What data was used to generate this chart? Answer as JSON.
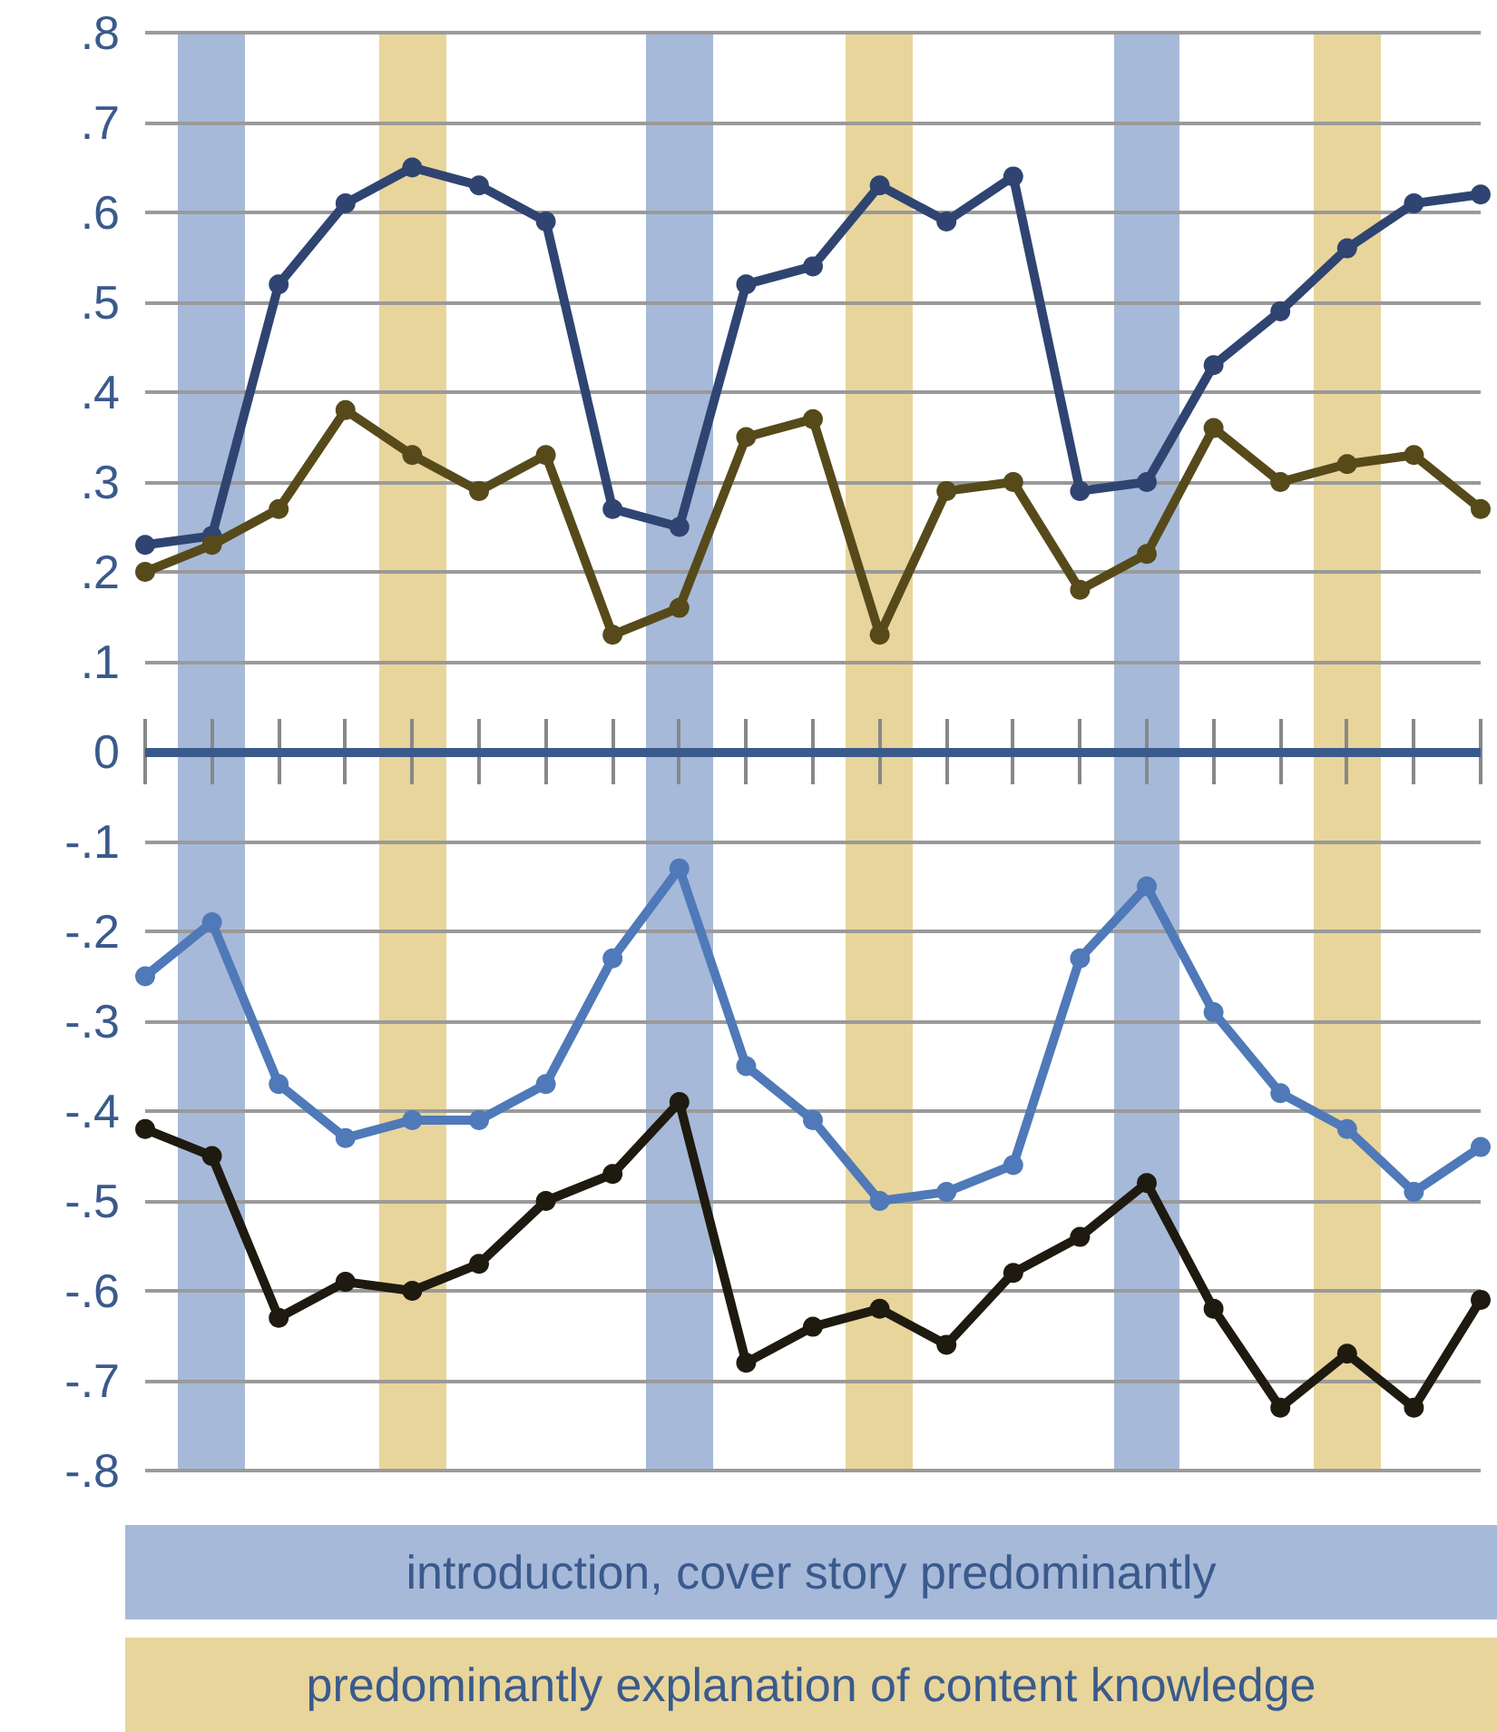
{
  "chart_data": {
    "type": "line",
    "categories": [
      null,
      null,
      null,
      null,
      null,
      null,
      null,
      null,
      null,
      null,
      null,
      null,
      null,
      null,
      null,
      null,
      null,
      null,
      null,
      null,
      null
    ],
    "ylim": [
      -0.8,
      0.8
    ],
    "yticks": [
      {
        "value": -0.8,
        "label": "-.8"
      },
      {
        "value": -0.7,
        "label": "-.7"
      },
      {
        "value": -0.6,
        "label": "-.6"
      },
      {
        "value": -0.5,
        "label": "-.5"
      },
      {
        "value": -0.4,
        "label": "-.4"
      },
      {
        "value": -0.3,
        "label": "-.3"
      },
      {
        "value": -0.2,
        "label": "-.2"
      },
      {
        "value": -0.1,
        "label": "-.1"
      },
      0,
      {
        "value": 0.1,
        "label": ".1"
      },
      {
        "value": 0.2,
        "label": ".2"
      },
      {
        "value": 0.3,
        "label": ".3"
      },
      {
        "value": 0.4,
        "label": ".4"
      },
      {
        "value": 0.5,
        "label": ".5"
      },
      {
        "value": 0.6,
        "label": ".6"
      },
      {
        "value": 0.7,
        "label": ".7"
      },
      {
        "value": 0.8,
        "label": ".8"
      }
    ],
    "series": [
      {
        "color": "#2f4471",
        "values": [
          0.23,
          0.24,
          0.52,
          0.61,
          0.65,
          0.63,
          0.59,
          0.27,
          0.25,
          0.52,
          0.54,
          0.63,
          0.59,
          0.64,
          0.29,
          0.3,
          0.43,
          0.49,
          0.56,
          0.61,
          0.62
        ]
      },
      {
        "color": "#574a1a",
        "values": [
          0.2,
          0.23,
          0.27,
          0.38,
          0.33,
          0.29,
          0.33,
          0.13,
          0.16,
          0.35,
          0.37,
          0.13,
          0.29,
          0.3,
          0.18,
          0.22,
          0.36,
          0.3,
          0.32,
          0.33,
          0.27
        ]
      },
      {
        "color": "#4f79b8",
        "values": [
          -0.25,
          -0.19,
          -0.37,
          -0.43,
          -0.41,
          -0.41,
          -0.37,
          -0.23,
          -0.13,
          -0.35,
          -0.41,
          -0.5,
          -0.49,
          -0.46,
          -0.23,
          -0.15,
          -0.29,
          -0.38,
          -0.42,
          -0.49,
          -0.44
        ]
      },
      {
        "color": "#1e1a0f",
        "values": [
          -0.42,
          -0.45,
          -0.63,
          -0.59,
          -0.6,
          -0.57,
          -0.5,
          -0.47,
          -0.39,
          -0.68,
          -0.64,
          -0.62,
          -0.66,
          -0.58,
          -0.54,
          -0.48,
          -0.62,
          -0.73,
          -0.67,
          -0.73,
          -0.61
        ]
      }
    ],
    "annotations": [
      "introduction, cover story predominantly",
      "predominantly explanation of content knowledge"
    ],
    "ref_lines": [
      {
        "axis": "y",
        "value": 0,
        "color": "#3a5a8c"
      }
    ],
    "grid": "y",
    "tick_labels": "y",
    "marker": "circle",
    "line_style": "solid"
  }
}
